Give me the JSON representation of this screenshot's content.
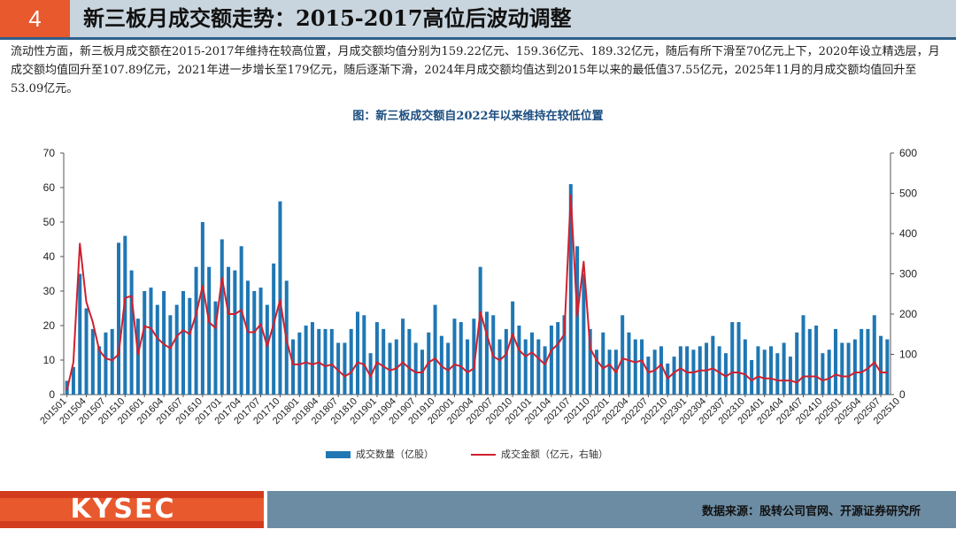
{
  "header": {
    "number": "4",
    "title": "新三板月成交额走势：2015-2017高位后波动调整"
  },
  "paragraph": "流动性方面，新三板月成交额在2015-2017年维持在较高位置，月成交额均值分别为159.22亿元、159.36亿元、189.32亿元，随后有所下滑至70亿元上下，2020年设立精选层，月成交额均值回升至107.89亿元，2021年进一步增长至179亿元，随后逐渐下滑，2024年月成交额均值达到2015年以来的最低值37.55亿元，2025年11月的月成交额均值回升至53.09亿元。",
  "colors": {
    "bar": "#1F77B4",
    "line": "#D0202E",
    "accent": "#E8592D",
    "title": "#1C4E80"
  },
  "chart_data": {
    "type": "bar+line",
    "title": "图：新三板成交额自2022年以来维持在较低位置",
    "ylim_left": [
      0,
      70
    ],
    "yticks_left": [
      0,
      10,
      20,
      30,
      40,
      50,
      60,
      70
    ],
    "ylim_right": [
      0,
      600
    ],
    "yticks_right": [
      0,
      100,
      200,
      300,
      400,
      500,
      600
    ],
    "x_tick_labels": [
      "201501",
      "201504",
      "201507",
      "201510",
      "201601",
      "201604",
      "201607",
      "201610",
      "201701",
      "201704",
      "201707",
      "201710",
      "201801",
      "201804",
      "201807",
      "201810",
      "201901",
      "201904",
      "201907",
      "201910",
      "202001",
      "202004",
      "202007",
      "202010",
      "202101",
      "202104",
      "202107",
      "202110",
      "202201",
      "202204",
      "202207",
      "202210",
      "202301",
      "202304",
      "202307",
      "202310",
      "202401",
      "202404",
      "202407",
      "202410",
      "202501",
      "202504",
      "202507",
      "202510"
    ],
    "series": [
      {
        "name": "成交数量（亿股）",
        "axis": "left",
        "values": [
          4,
          8,
          35,
          25,
          19,
          14,
          18,
          19,
          44,
          46,
          36,
          22,
          30,
          31,
          26,
          30,
          23,
          26,
          30,
          28,
          37,
          50,
          37,
          27,
          45,
          37,
          36,
          43,
          33,
          30,
          31,
          26,
          38,
          56,
          33,
          16,
          18,
          20,
          21,
          19,
          19,
          19,
          15,
          15,
          19,
          24,
          23,
          12,
          21,
          19,
          15,
          16,
          22,
          19,
          15,
          13,
          18,
          26,
          17,
          15,
          22,
          21,
          16,
          22,
          37,
          24,
          23,
          16,
          19,
          27,
          20,
          16,
          18,
          16,
          14,
          20,
          21,
          23,
          61,
          43,
          35,
          19,
          13,
          18,
          13,
          13,
          23,
          18,
          16,
          16,
          11,
          13,
          14,
          9,
          11,
          14,
          14,
          13,
          14,
          15,
          17,
          14,
          12,
          21,
          21,
          16,
          10,
          14,
          13,
          14,
          12,
          15,
          11,
          18,
          23,
          19,
          20,
          12,
          13,
          19,
          15,
          15,
          16,
          19,
          19,
          23,
          17,
          16
        ],
        "estimated": true
      },
      {
        "name": "成交金额（亿元，右轴）",
        "axis": "right",
        "values": [
          10,
          80,
          375,
          230,
          180,
          110,
          90,
          85,
          100,
          240,
          245,
          100,
          170,
          165,
          140,
          125,
          115,
          145,
          160,
          150,
          200,
          270,
          180,
          165,
          290,
          200,
          200,
          210,
          155,
          155,
          175,
          120,
          175,
          235,
          135,
          75,
          75,
          80,
          75,
          80,
          70,
          75,
          60,
          45,
          55,
          80,
          75,
          45,
          80,
          70,
          60,
          65,
          80,
          65,
          55,
          55,
          80,
          90,
          70,
          60,
          75,
          70,
          55,
          65,
          205,
          150,
          95,
          85,
          100,
          150,
          110,
          95,
          105,
          90,
          75,
          110,
          125,
          150,
          495,
          195,
          330,
          115,
          85,
          65,
          75,
          55,
          90,
          85,
          80,
          85,
          55,
          60,
          75,
          40,
          55,
          65,
          55,
          55,
          60,
          60,
          65,
          55,
          45,
          55,
          55,
          50,
          35,
          45,
          40,
          40,
          35,
          35,
          35,
          30,
          45,
          45,
          45,
          35,
          40,
          50,
          45,
          45,
          55,
          55,
          65,
          80,
          55,
          55
        ],
        "estimated": true
      }
    ]
  },
  "legend": {
    "bar_label": "成交数量（亿股）",
    "line_label": "成交金额（亿元，右轴）"
  },
  "footer": {
    "logo": "KYSEC",
    "source": "数据来源：股转公司官网、开源证券研究所"
  }
}
